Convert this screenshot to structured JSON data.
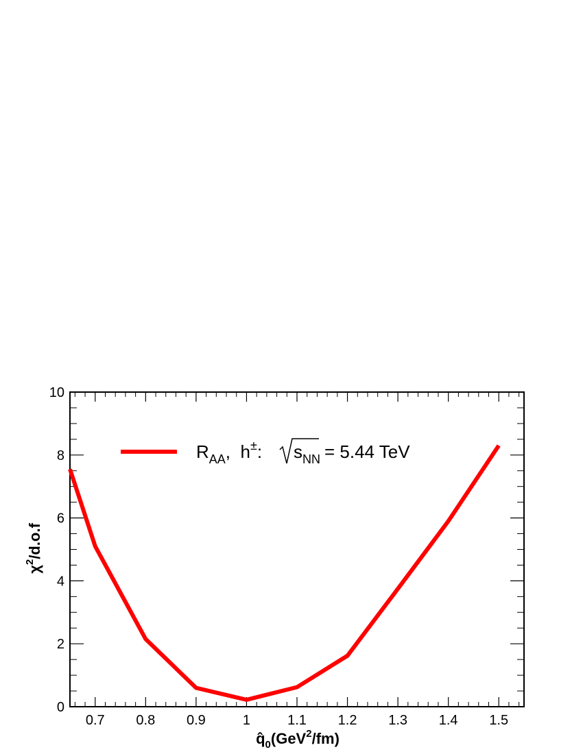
{
  "chart_data": {
    "type": "line",
    "xlabel": {
      "main": "q̂",
      "sub": "0",
      "rest": "(GeV",
      "sup": "2",
      "tail": "/fm)"
    },
    "ylabel": {
      "main": "χ",
      "sup": "2",
      "rest": "/d.o.f"
    },
    "xlim": [
      0.65,
      1.55
    ],
    "ylim": [
      0,
      10
    ],
    "x_ticks": [
      0.7,
      0.8,
      0.9,
      1,
      1.1,
      1.2,
      1.3,
      1.4,
      1.5
    ],
    "x_tick_labels": [
      "0.7",
      "0.8",
      "0.9",
      "1",
      "1.1",
      "1.2",
      "1.3",
      "1.4",
      "1.5"
    ],
    "y_ticks": [
      0,
      2,
      4,
      6,
      8,
      10
    ],
    "y_tick_labels": [
      "0",
      "2",
      "4",
      "6",
      "8",
      "10"
    ],
    "grid": false,
    "legend_placement": "top",
    "series": [
      {
        "legend": {
          "r": "R",
          "r_sub": "AA",
          "sep": ",  h",
          "h_sup": "±",
          "colon": ":",
          "s": "s",
          "s_sub": "NN",
          "energy": "= 5.44 TeV"
        },
        "color": "#ff0000",
        "x": [
          0.65,
          0.7,
          0.8,
          0.9,
          1.0,
          1.1,
          1.2,
          1.3,
          1.4,
          1.5
        ],
        "y": [
          7.55,
          5.1,
          2.15,
          0.6,
          0.22,
          0.62,
          1.62,
          3.75,
          5.9,
          8.3
        ]
      }
    ]
  }
}
